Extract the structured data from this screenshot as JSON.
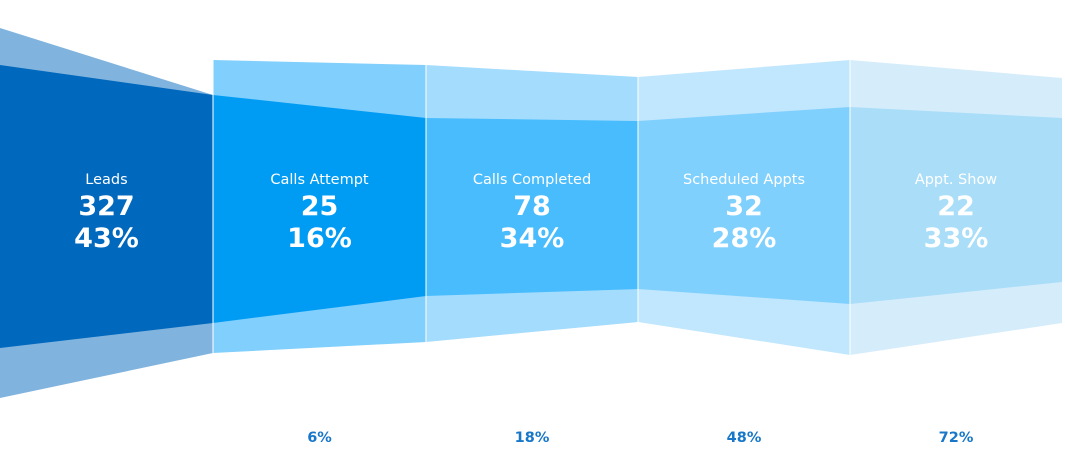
{
  "chart_data": {
    "type": "funnel",
    "stages": [
      {
        "label": "Leads",
        "count": "327",
        "percent": "43%",
        "conversion": ""
      },
      {
        "label": "Calls Attempt",
        "count": "25",
        "percent": "16%",
        "conversion": "6%"
      },
      {
        "label": "Calls Completed",
        "count": "78",
        "percent": "34%",
        "conversion": "18%"
      },
      {
        "label": "Scheduled Appts",
        "count": "32",
        "percent": "28%",
        "conversion": "48%"
      },
      {
        "label": "Appt. Show",
        "count": "22",
        "percent": "33%",
        "conversion": "72%"
      }
    ]
  },
  "colors": {
    "stage_main": [
      "#0068bd",
      "#009cf4",
      "#48bcfd",
      "#80d0fe",
      "#a9ddf8"
    ],
    "stage_wing": [
      "#80b4de",
      "#80cffc",
      "#a4dcfd",
      "#c0e7fe",
      "#d5ecfb"
    ],
    "conversion_text": "#1877c8",
    "stage_text": "#ffffff"
  }
}
